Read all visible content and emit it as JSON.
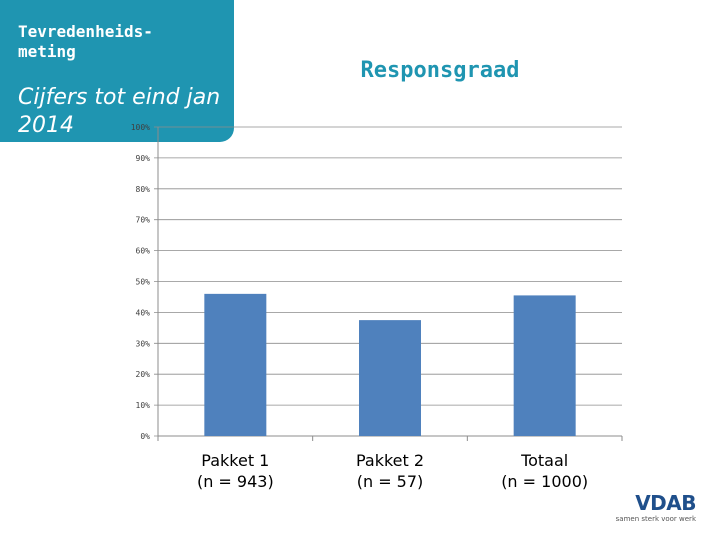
{
  "header": {
    "title": "Tevredenheids-meting",
    "subtitle": "Cijfers tot eind jan 2014",
    "background_color": "#1f95b1"
  },
  "chart_data": {
    "type": "bar",
    "title": "Responsgraad",
    "categories": [
      {
        "name": "Pakket 1",
        "n_label": "(n = 943)"
      },
      {
        "name": "Pakket 2",
        "n_label": "(n = 57)"
      },
      {
        "name": "Totaal",
        "n_label": "(n = 1000)"
      }
    ],
    "values": [
      46,
      37.5,
      45.5
    ],
    "ylim": [
      0,
      100
    ],
    "yticks": [
      "0%",
      "10%",
      "20%",
      "30%",
      "40%",
      "50%",
      "60%",
      "70%",
      "80%",
      "90%",
      "100%"
    ],
    "grid": true,
    "bar_color": "#4f81bd",
    "grid_color": "#8c8c8c",
    "xlabel": "",
    "ylabel": ""
  },
  "logo": {
    "text": "VDAB",
    "tagline": "samen sterk voor werk",
    "color": "#1f4f8b"
  }
}
